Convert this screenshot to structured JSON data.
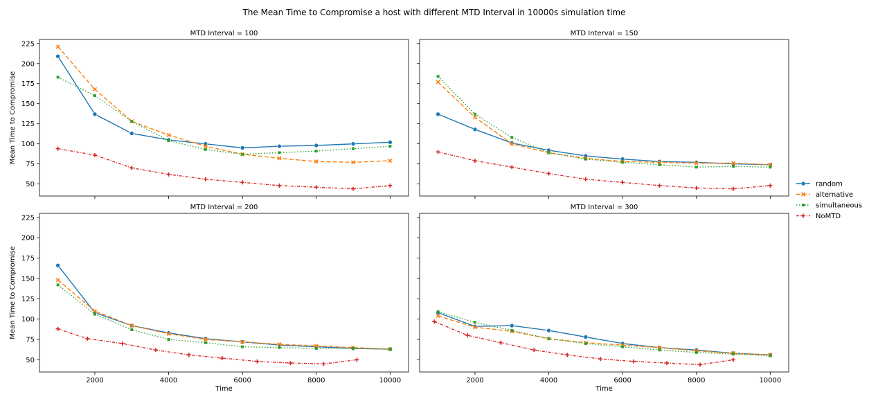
{
  "chart_data": {
    "type": "line",
    "title": "The Mean Time to Compromise a host with different MTD Interval in 10000s simulation time",
    "xlabel": "Time",
    "ylabel": "Mean Time to Compromise",
    "xlim": [
      500,
      10500
    ],
    "ylim": [
      35,
      230
    ],
    "xticks": [
      2000,
      4000,
      6000,
      8000,
      10000
    ],
    "yticks": [
      50,
      75,
      100,
      125,
      150,
      175,
      200,
      225
    ],
    "grid": false,
    "legend_position": "right-center",
    "series_style": [
      {
        "name": "random",
        "color": "#1f77b4",
        "dash": "",
        "marker": "circle"
      },
      {
        "name": "alternative",
        "color": "#ff7f0e",
        "dash": "6,3",
        "marker": "x"
      },
      {
        "name": "simultaneous",
        "color": "#2ca02c",
        "dash": "1.5,2.5",
        "marker": "square"
      },
      {
        "name": "NoMTD",
        "color": "#d62728",
        "dash": "4,2,1,2",
        "marker": "plus"
      }
    ],
    "panels": [
      {
        "title": "MTD Interval = 100",
        "series": [
          {
            "name": "random",
            "x": [
              1000,
              2000,
              3000,
              4000,
              5000,
              6000,
              7000,
              8000,
              9000,
              10000
            ],
            "values": [
              209,
              137,
              113,
              105,
              100,
              95,
              97,
              98,
              100,
              102
            ]
          },
          {
            "name": "alternative",
            "x": [
              1000,
              2000,
              3000,
              4000,
              5000,
              6000,
              7000,
              8000,
              9000,
              10000
            ],
            "values": [
              221,
              168,
              128,
              111,
              97,
              87,
              82,
              78,
              77,
              79
            ]
          },
          {
            "name": "simultaneous",
            "x": [
              1000,
              2000,
              3000,
              4000,
              5000,
              6000,
              7000,
              8000,
              9000,
              10000
            ],
            "values": [
              183,
              160,
              128,
              104,
              93,
              87,
              89,
              91,
              94,
              97
            ]
          },
          {
            "name": "NoMTD",
            "x": [
              1000,
              2000,
              3000,
              4000,
              5000,
              6000,
              7000,
              8000,
              9000,
              10000
            ],
            "values": [
              94,
              86,
              70,
              62,
              56,
              52,
              48,
              46,
              44,
              48
            ]
          }
        ]
      },
      {
        "title": "MTD Interval = 150",
        "series": [
          {
            "name": "random",
            "x": [
              1000,
              2000,
              3000,
              4000,
              5000,
              6000,
              7000,
              8000,
              9000,
              10000
            ],
            "values": [
              137,
              118,
              101,
              92,
              85,
              81,
              78,
              77,
              75,
              74
            ]
          },
          {
            "name": "alternative",
            "x": [
              1000,
              2000,
              3000,
              4000,
              5000,
              6000,
              7000,
              8000,
              9000,
              10000
            ],
            "values": [
              177,
              133,
              100,
              89,
              82,
              78,
              77,
              76,
              76,
              74
            ]
          },
          {
            "name": "simultaneous",
            "x": [
              1000,
              2000,
              3000,
              4000,
              5000,
              6000,
              7000,
              8000,
              9000,
              10000
            ],
            "values": [
              184,
              137,
              108,
              89,
              81,
              77,
              74,
              71,
              72,
              71
            ]
          },
          {
            "name": "NoMTD",
            "x": [
              1000,
              2000,
              3000,
              4000,
              5000,
              6000,
              7000,
              8000,
              9000,
              10000
            ],
            "values": [
              90,
              79,
              71,
              63,
              56,
              52,
              48,
              45,
              44,
              48
            ]
          }
        ]
      },
      {
        "title": "MTD Interval = 200",
        "series": [
          {
            "name": "random",
            "x": [
              1000,
              2000,
              3000,
              4000,
              5000,
              6000,
              7000,
              8000,
              9000,
              10000
            ],
            "values": [
              166,
              108,
              92,
              83,
              76,
              72,
              68,
              66,
              64,
              63
            ]
          },
          {
            "name": "alternative",
            "x": [
              1000,
              2000,
              3000,
              4000,
              5000,
              6000,
              7000,
              8000,
              9000,
              10000
            ],
            "values": [
              148,
              110,
              92,
              82,
              75,
              72,
              69,
              67,
              65,
              63
            ]
          },
          {
            "name": "simultaneous",
            "x": [
              1000,
              2000,
              3000,
              4000,
              5000,
              6000,
              7000,
              8000,
              9000,
              10000
            ],
            "values": [
              142,
              106,
              87,
              75,
              71,
              66,
              65,
              64,
              64,
              63
            ]
          },
          {
            "name": "NoMTD",
            "x": [
              1000,
              1800,
              2750,
              3650,
              4550,
              5450,
              6400,
              7300,
              8200,
              9100
            ],
            "values": [
              88,
              76,
              70,
              62,
              56,
              52,
              48,
              46,
              45,
              50
            ]
          }
        ]
      },
      {
        "title": "MTD Interval = 300",
        "series": [
          {
            "name": "random",
            "x": [
              1000,
              2000,
              3000,
              4000,
              5000,
              6000,
              7000,
              8000,
              9000,
              10000
            ],
            "values": [
              108,
              91,
              92,
              86,
              78,
              70,
              65,
              62,
              58,
              56
            ]
          },
          {
            "name": "alternative",
            "x": [
              1000,
              2000,
              3000,
              4000,
              5000,
              6000,
              7000,
              8000,
              9000,
              10000
            ],
            "values": [
              104,
              90,
              85,
              76,
              71,
              68,
              65,
              61,
              58,
              56
            ]
          },
          {
            "name": "simultaneous",
            "x": [
              1000,
              2000,
              3000,
              4000,
              5000,
              6000,
              7000,
              8000,
              9000,
              10000
            ],
            "values": [
              109,
              96,
              86,
              76,
              70,
              66,
              62,
              59,
              57,
              55
            ]
          },
          {
            "name": "NoMTD",
            "x": [
              900,
              1800,
              2700,
              3600,
              4500,
              5400,
              6300,
              7200,
              8100,
              9000
            ],
            "values": [
              97,
              80,
              71,
              62,
              56,
              51,
              48,
              46,
              44,
              50
            ]
          }
        ]
      }
    ]
  }
}
